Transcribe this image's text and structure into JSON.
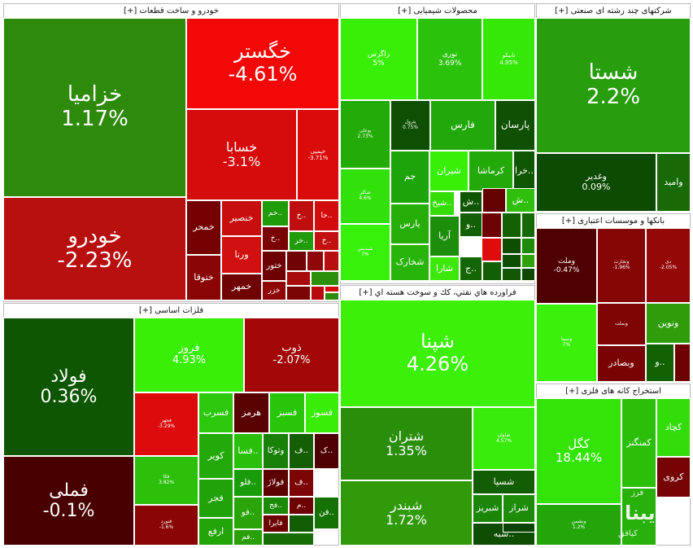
{
  "chart_data": {
    "type": "treemap",
    "sectors": [
      {
        "key": "auto",
        "title": "خودرو و ساخت قطعات [+]",
        "stocks": [
          {
            "name": "خزامیا",
            "change": "1.17%",
            "color": "#2e8a0b"
          },
          {
            "name": "خودرو",
            "change": "-2.23%",
            "color": "#b80f0f"
          },
          {
            "name": "خگستر",
            "change": "-4.61%",
            "color": "#f30707"
          },
          {
            "name": "خسابا",
            "change": "-3.1%",
            "color": "#d60c0c"
          },
          {
            "name": "خپمپی",
            "change": "-3.71%",
            "color": "#da0b0b"
          },
          {
            "name": "خمحر",
            "change": "",
            "color": "#750202"
          },
          {
            "name": "خنصیر",
            "change": "",
            "color": "#c80d0d"
          },
          {
            "name": "ورنا",
            "change": "",
            "color": "#d11010"
          },
          {
            "name": "ختوقا",
            "change": "",
            "color": "#8a0606"
          },
          {
            "name": "خمهر",
            "change": "",
            "color": "#6f0303"
          },
          {
            "name": "خم..",
            "change": "",
            "color": "#1f9c0a"
          },
          {
            "name": "خ..",
            "change": "",
            "color": "#bf0e0e"
          },
          {
            "name": "خا..",
            "change": "",
            "color": "#d20c0c"
          },
          {
            "name": "خ..",
            "change": "",
            "color": "#7a0404"
          },
          {
            "name": "خر..",
            "change": "",
            "color": "#219b0b"
          },
          {
            "name": "خ..",
            "change": "",
            "color": "#c20f0f"
          },
          {
            "name": "ختور",
            "change": "",
            "color": "#6e0202"
          },
          {
            "name": "خزر",
            "change": "",
            "color": "#8f0707"
          },
          {
            "name": "",
            "change": "",
            "color": "#700303"
          },
          {
            "name": "",
            "change": "",
            "color": "#8f0808"
          },
          {
            "name": "",
            "change": "",
            "color": "#b70f0f"
          },
          {
            "name": "",
            "change": "",
            "color": "#a70b0b"
          },
          {
            "name": "",
            "change": "",
            "color": "#2c8f0c"
          },
          {
            "name": "",
            "change": "",
            "color": "#7b0505"
          },
          {
            "name": "",
            "change": "",
            "color": "#b80b0b"
          },
          {
            "name": "",
            "change": "",
            "color": "#d10d0d"
          },
          {
            "name": "",
            "change": "",
            "color": "#2c8b0a"
          }
        ]
      },
      {
        "key": "chem",
        "title": "محصولات شیمیایی [+]",
        "stocks": [
          {
            "name": "زاگرس",
            "change": "5%",
            "color": "#38f007"
          },
          {
            "name": "نوری",
            "change": "3.69%",
            "color": "#2bc20b"
          },
          {
            "name": "نابیکو",
            "change": "4.95%",
            "color": "#35e807"
          },
          {
            "name": "بوعلی",
            "change": "2.73%",
            "color": "#23ab08"
          },
          {
            "name": "پترول",
            "change": "0.75%",
            "color": "#0f4f02"
          },
          {
            "name": "فارس",
            "change": "",
            "color": "#22a80b"
          },
          {
            "name": "پارسان",
            "change": "",
            "color": "#105003"
          },
          {
            "name": "شکلر",
            "change": "4.6%",
            "color": "#31e109"
          },
          {
            "name": "جم",
            "change": "",
            "color": "#1ea40b"
          },
          {
            "name": "شیران",
            "change": "",
            "color": "#38ef08"
          },
          {
            "name": "کرماشا",
            "change": "",
            "color": "#23a908"
          },
          {
            "name": "خرا..",
            "change": "",
            "color": "#105704"
          },
          {
            "name": "شپدیس",
            "change": "7%",
            "color": "#37f10b"
          },
          {
            "name": "پارس",
            "change": "",
            "color": "#26ad08"
          },
          {
            "name": "شیخ..",
            "change": "",
            "color": "#34dd08"
          },
          {
            "name": "ش..",
            "change": "",
            "color": "#105502"
          },
          {
            "name": "ش..",
            "change": "",
            "color": "#650202"
          },
          {
            "name": "ش..",
            "change": "",
            "color": "#2fbf0c"
          },
          {
            "name": "شخارک",
            "change": "",
            "color": "#29b40b"
          },
          {
            "name": "آریا",
            "change": "",
            "color": "#1d8e0b"
          },
          {
            "name": "و..",
            "change": "",
            "color": "#135f03"
          },
          {
            "name": "شارا",
            "change": "",
            "color": "#3ee80a"
          },
          {
            "name": "ج..",
            "change": "",
            "color": "#156504"
          },
          {
            "name": "",
            "change": "",
            "color": "#6e0303"
          },
          {
            "name": "",
            "change": "",
            "color": "#136103"
          },
          {
            "name": "",
            "change": "",
            "color": "#166a05"
          },
          {
            "name": "",
            "change": "",
            "color": "#e00b0b"
          },
          {
            "name": "",
            "change": "",
            "color": "#0f4e02"
          },
          {
            "name": "",
            "change": "",
            "color": "#1d8a08"
          },
          {
            "name": "",
            "change": "",
            "color": "#116004"
          },
          {
            "name": "",
            "change": "",
            "color": "#0d4e02"
          },
          {
            "name": "",
            "change": "",
            "color": "#2ea10b"
          },
          {
            "name": "",
            "change": "",
            "color": "#125703"
          },
          {
            "name": "",
            "change": "",
            "color": "#0e4801"
          },
          {
            "name": "",
            "change": "",
            "color": "#2f9c0b"
          }
        ]
      },
      {
        "key": "multi",
        "title": "شرکتهای چند رشته ای صنعتی [+]",
        "stocks": [
          {
            "name": "شستا",
            "change": "2.2%",
            "color": "#289d0d"
          },
          {
            "name": "وغدیر",
            "change": "0.09%",
            "color": "#0d4a02"
          },
          {
            "name": "وامید",
            "change": "",
            "color": "#176a05"
          }
        ]
      },
      {
        "key": "bank",
        "title": "بانکها و موسسات اعتباری [+]",
        "stocks": [
          {
            "name": "وملت",
            "change": "-0.47%",
            "color": "#4f0101"
          },
          {
            "name": "وتجارت",
            "change": "-1.96%",
            "color": "#860606"
          },
          {
            "name": "دی",
            "change": "-2.05%",
            "color": "#950808"
          },
          {
            "name": "وسینا",
            "change": "7%",
            "color": "#3bf00b"
          },
          {
            "name": "وبملت",
            "change": "",
            "color": "#7f0404"
          },
          {
            "name": "ونوین",
            "change": "",
            "color": "#2f9c0a"
          },
          {
            "name": "وبصادر",
            "change": "",
            "color": "#790303"
          },
          {
            "name": "و..",
            "change": "",
            "color": "#116203"
          },
          {
            "name": "",
            "change": "",
            "color": "#6e0202"
          }
        ]
      },
      {
        "key": "metals",
        "title": "فلزات اساسی [+]",
        "stocks": [
          {
            "name": "فولاد",
            "change": "0.36%",
            "color": "#0e5602"
          },
          {
            "name": "فملی",
            "change": "-0.1%",
            "color": "#480000"
          },
          {
            "name": "فروز",
            "change": "4.93%",
            "color": "#39ef07"
          },
          {
            "name": "ذوب",
            "change": "-2.07%",
            "color": "#a20808"
          },
          {
            "name": "فجهز",
            "change": "-3.29%",
            "color": "#dd0b0b"
          },
          {
            "name": "فسرب",
            "change": "",
            "color": "#2cc80b"
          },
          {
            "name": "هرمز",
            "change": "",
            "color": "#5a0101"
          },
          {
            "name": "فسبز",
            "change": "",
            "color": "#28c50a"
          },
          {
            "name": "فسوز",
            "change": "",
            "color": "#3aed09"
          },
          {
            "name": "فکا",
            "change": "3.82%",
            "color": "#2dc00a"
          },
          {
            "name": "کویر",
            "change": "",
            "color": "#24a90a"
          },
          {
            "name": "فسا..",
            "change": "",
            "color": "#2abf0b"
          },
          {
            "name": "وتوکا",
            "change": "",
            "color": "#19810a"
          },
          {
            "name": "ف..",
            "change": "",
            "color": "#145e04"
          },
          {
            "name": "ک..",
            "change": "",
            "color": "#4f0101"
          },
          {
            "name": "فجر",
            "change": "",
            "color": "#21a20a"
          },
          {
            "name": "فلو..",
            "change": "",
            "color": "#199c0a"
          },
          {
            "name": "فولاژ",
            "change": "",
            "color": "#5c0101"
          },
          {
            "name": "ف..",
            "change": "",
            "color": "#7d0505"
          },
          {
            "name": "فنورد",
            "change": "-1.6%",
            "color": "#8a0505"
          },
          {
            "name": "ارفع",
            "change": "",
            "color": "#21a508"
          },
          {
            "name": "فو..",
            "change": "",
            "color": "#2ba40a"
          },
          {
            "name": "فج..",
            "change": "",
            "color": "#1c8a09"
          },
          {
            "name": "م..",
            "change": "",
            "color": "#6d0202"
          },
          {
            "name": "فن..",
            "change": "",
            "color": "#177205"
          },
          {
            "name": "فم..",
            "change": "",
            "color": "#2b9f0a"
          },
          {
            "name": "فایرا",
            "change": "",
            "color": "#6d0202"
          },
          {
            "name": "",
            "change": "",
            "color": "#125c04"
          },
          {
            "name": "",
            "change": "",
            "color": "#176c05"
          }
        ]
      },
      {
        "key": "oil",
        "title": "فراورده هاي نفتي، كك و سوخت هسته اي [+]",
        "stocks": [
          {
            "name": "شپنا",
            "change": "4.26%",
            "color": "#3cf00a"
          },
          {
            "name": "شتران",
            "change": "1.35%",
            "color": "#2a8e0b"
          },
          {
            "name": "شاوان",
            "change": "4.57%",
            "color": "#39ec0b"
          },
          {
            "name": "شبندر",
            "change": "1.72%",
            "color": "#309a0b"
          },
          {
            "name": "شسپا",
            "change": "",
            "color": "#135d03"
          },
          {
            "name": "شبریز",
            "change": "",
            "color": "#1b8609"
          },
          {
            "name": "شراز",
            "change": "",
            "color": "#1e8c09"
          },
          {
            "name": "شبه..",
            "change": "",
            "color": "#0e4d02"
          },
          {
            "name": "و..",
            "change": "",
            "color": "#0c4401"
          }
        ]
      },
      {
        "key": "mining",
        "title": "استخراج کانه های فلزی [+]",
        "stocks": [
          {
            "name": "کگل",
            "change": "18.44%",
            "color": "#34e408"
          },
          {
            "name": "کچاد",
            "change": "",
            "color": "#32dd0a"
          },
          {
            "name": "کمنگنز",
            "change": "",
            "color": "#2bbf0a"
          },
          {
            "name": "کروی",
            "change": "",
            "color": "#760404"
          },
          {
            "name": "وبشمن",
            "change": "1.2%",
            "color": "#24a60b"
          },
          {
            "name": "",
            "change": "",
            "color": "#29b10b"
          }
        ]
      }
    ],
    "watermark": {
      "brand": "ایبنا",
      "top": "فرز",
      "sub": "کیافق"
    }
  }
}
